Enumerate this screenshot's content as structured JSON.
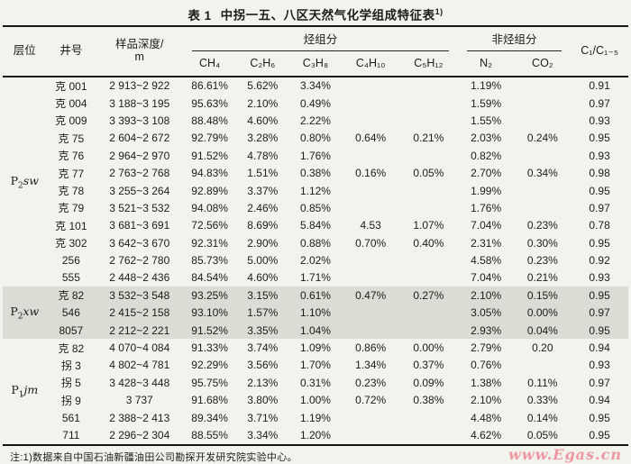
{
  "page": {
    "title_prefix": "表 1",
    "title_main": "中拐一五、八区天然气化学组成特征表",
    "title_sup": "1)",
    "footnote": "注:1)数据来自中国石油新疆油田公司勘探开发研究院实验中心。",
    "watermark": "www.Egas.cn",
    "colors": {
      "paper": "#f3f3ee",
      "shaded_band": "#dcdcd5",
      "ink": "#1b1b1b",
      "watermark_pink": "#ef97a1"
    }
  },
  "table": {
    "headers": {
      "stratum": "层位",
      "well": "井号",
      "depth_line1": "样品深度/",
      "depth_line2": "m",
      "hydrocarbon_group": "烃组分",
      "non_hydrocarbon_group": "非烃组分",
      "components": [
        "CH₄",
        "C₂H₆",
        "C₃H₈",
        "C₄H₁₀",
        "C₅H₁₂"
      ],
      "non_components": [
        "N₂",
        "CO₂"
      ],
      "ratio": "C₁/C₁₋₅"
    },
    "sections": [
      {
        "stratum": {
          "base": "P",
          "sub": "2",
          "name": "sw"
        },
        "shaded": false,
        "rows": [
          {
            "well": "克 001",
            "depth": "2 913~2 922",
            "values": [
              "86.61%",
              "5.62%",
              "3.34%",
              "",
              "",
              "1.19%",
              "",
              "0.91"
            ]
          },
          {
            "well": "克 004",
            "depth": "3 188~3 195",
            "values": [
              "95.63%",
              "2.10%",
              "0.49%",
              "",
              "",
              "1.59%",
              "",
              "0.97"
            ]
          },
          {
            "well": "克 009",
            "depth": "3 393~3 108",
            "values": [
              "88.48%",
              "4.60%",
              "2.22%",
              "",
              "",
              "1.55%",
              "",
              "0.93"
            ]
          },
          {
            "well": "克 75",
            "depth": "2 604~2 672",
            "values": [
              "92.79%",
              "3.28%",
              "0.80%",
              "0.64%",
              "0.21%",
              "2.03%",
              "0.24%",
              "0.95"
            ]
          },
          {
            "well": "克 76",
            "depth": "2 964~2 970",
            "values": [
              "91.52%",
              "4.78%",
              "1.76%",
              "",
              "",
              "0.82%",
              "",
              "0.93"
            ]
          },
          {
            "well": "克 77",
            "depth": "2 763~2 768",
            "values": [
              "94.83%",
              "1.51%",
              "0.38%",
              "0.16%",
              "0.05%",
              "2.70%",
              "0.34%",
              "0.98"
            ]
          },
          {
            "well": "克 78",
            "depth": "3 255~3 264",
            "values": [
              "92.89%",
              "3.37%",
              "1.12%",
              "",
              "",
              "1.99%",
              "",
              "0.95"
            ]
          },
          {
            "well": "克 79",
            "depth": "3 521~3 532",
            "values": [
              "94.08%",
              "2.46%",
              "0.85%",
              "",
              "",
              "1.76%",
              "",
              "0.97"
            ]
          },
          {
            "well": "克 101",
            "depth": "3 681~3 691",
            "values": [
              "72.56%",
              "8.69%",
              "5.84%",
              "4.53",
              "1.07%",
              "7.04%",
              "0.23%",
              "0.78"
            ]
          },
          {
            "well": "克 302",
            "depth": "3 642~3 670",
            "values": [
              "92.31%",
              "2.90%",
              "0.88%",
              "0.70%",
              "0.40%",
              "2.31%",
              "0.30%",
              "0.95"
            ]
          },
          {
            "well": "256",
            "depth": "2 762~2 780",
            "values": [
              "85.73%",
              "5.00%",
              "2.02%",
              "",
              "",
              "4.58%",
              "0.23%",
              "0.92"
            ]
          },
          {
            "well": "555",
            "depth": "2 448~2 436",
            "values": [
              "84.54%",
              "4.60%",
              "1.71%",
              "",
              "",
              "7.04%",
              "0.21%",
              "0.93"
            ]
          }
        ]
      },
      {
        "stratum": {
          "base": "P",
          "sub": "2",
          "name": "xw"
        },
        "shaded": true,
        "rows": [
          {
            "well": "克 82",
            "depth": "3 532~3 548",
            "values": [
              "93.25%",
              "3.15%",
              "0.61%",
              "0.47%",
              "0.27%",
              "2.10%",
              "0.15%",
              "0.95"
            ]
          },
          {
            "well": "546",
            "depth": "2 415~2 158",
            "values": [
              "93.10%",
              "1.57%",
              "1.10%",
              "",
              "",
              "3.05%",
              "0.00%",
              "0.97"
            ]
          },
          {
            "well": "8057",
            "depth": "2 212~2 221",
            "values": [
              "91.52%",
              "3.35%",
              "1.04%",
              "",
              "",
              "2.93%",
              "0.04%",
              "0.95"
            ]
          }
        ]
      },
      {
        "stratum": {
          "base": "P",
          "sub": "1",
          "name": "jm"
        },
        "shaded": false,
        "rows": [
          {
            "well": "克 82",
            "depth": "4 070~4 084",
            "values": [
              "91.33%",
              "3.74%",
              "1.09%",
              "0.86%",
              "0.00%",
              "2.79%",
              "0.20",
              "0.94"
            ]
          },
          {
            "well": "拐 3",
            "depth": "4 802~4 781",
            "values": [
              "92.29%",
              "3.56%",
              "1.70%",
              "1.34%",
              "0.37%",
              "0.76%",
              "",
              "0.93"
            ]
          },
          {
            "well": "拐 5",
            "depth": "3 428~3 448",
            "values": [
              "95.75%",
              "2.13%",
              "0.31%",
              "0.23%",
              "0.09%",
              "1.38%",
              "0.11%",
              "0.97"
            ]
          },
          {
            "well": "拐 9",
            "depth": "3 737",
            "values": [
              "91.68%",
              "3.80%",
              "1.00%",
              "0.72%",
              "0.38%",
              "2.10%",
              "0.33%",
              "0.94"
            ]
          },
          {
            "well": "561",
            "depth": "2 388~2 413",
            "values": [
              "89.34%",
              "3.71%",
              "1.19%",
              "",
              "",
              "4.48%",
              "0.14%",
              "0.95"
            ]
          },
          {
            "well": "711",
            "depth": "2 296~2 304",
            "values": [
              "88.55%",
              "3.34%",
              "1.20%",
              "",
              "",
              "4.62%",
              "0.05%",
              "0.95"
            ]
          }
        ]
      }
    ]
  }
}
